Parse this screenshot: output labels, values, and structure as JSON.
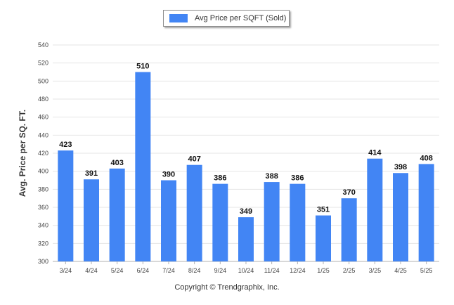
{
  "chart_data": {
    "type": "bar",
    "categories": [
      "3/24",
      "4/24",
      "5/24",
      "6/24",
      "7/24",
      "8/24",
      "9/24",
      "10/24",
      "11/24",
      "12/24",
      "1/25",
      "2/25",
      "3/25",
      "4/25",
      "5/25"
    ],
    "series": [
      {
        "name": "Avg Price per SQFT (Sold)",
        "values": [
          423,
          391,
          403,
          510,
          390,
          407,
          386,
          349,
          388,
          386,
          351,
          370,
          414,
          398,
          408
        ]
      }
    ],
    "ylabel": "Avg. Price per SQ. FT.",
    "ylim": [
      300,
      540
    ],
    "yticks": [
      300,
      320,
      340,
      360,
      380,
      400,
      420,
      440,
      460,
      480,
      500,
      520,
      540
    ],
    "grid": true,
    "legend_position": "top-center",
    "bar_color": "#4285f4"
  },
  "footer": {
    "copyright": "Copyright © Trendgraphix, Inc."
  }
}
